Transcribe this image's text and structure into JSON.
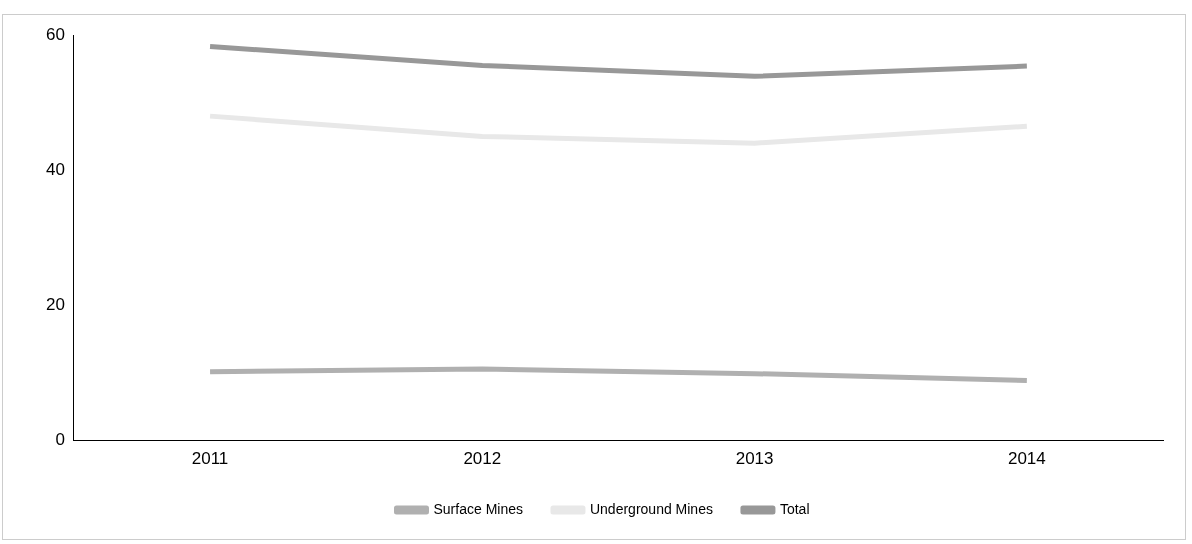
{
  "chart_data": {
    "type": "line",
    "categories": [
      "2011",
      "2012",
      "2013",
      "2014"
    ],
    "series": [
      {
        "name": "Surface Mines",
        "color": "#b0b0b0",
        "values": [
          10.2,
          10.6,
          9.9,
          8.9
        ]
      },
      {
        "name": "Underground Mines",
        "color": "#e8e8e8",
        "values": [
          48,
          45,
          44,
          46.5
        ]
      },
      {
        "name": "Total",
        "color": "#989898",
        "values": [
          58.3,
          55.5,
          53.9,
          55.4
        ]
      }
    ],
    "ylim": [
      0,
      60
    ],
    "yticks": [
      0,
      20,
      40,
      60
    ],
    "grid": false,
    "legend": "bottom",
    "marker": "none",
    "line_style": "solid"
  }
}
